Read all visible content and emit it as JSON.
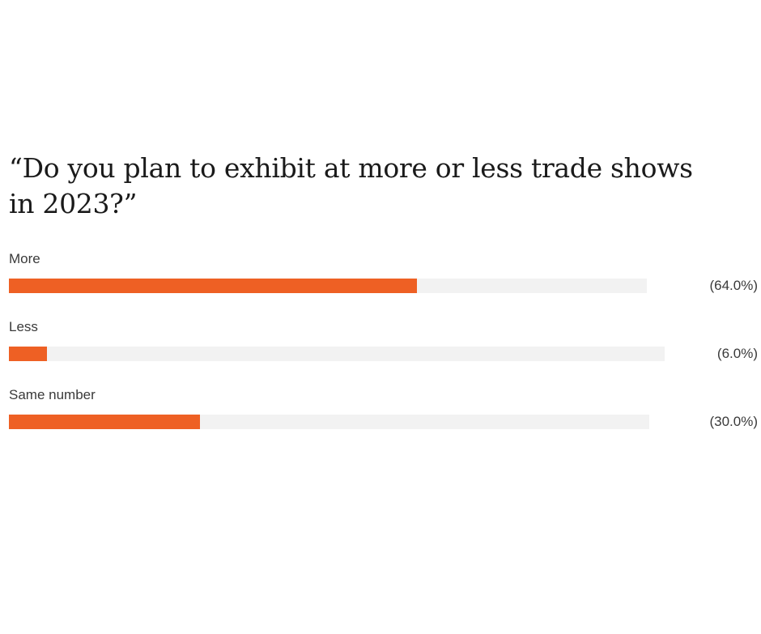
{
  "chart_data": {
    "type": "bar",
    "orientation": "horizontal",
    "title": "“Do you plan to exhibit at more or less trade shows in 2023?”",
    "categories": [
      "More",
      "Less",
      "Same number"
    ],
    "values": [
      64.0,
      6.0,
      30.0
    ],
    "value_labels": [
      "(64.0%)",
      "(6.0%)",
      "(30.0%)"
    ],
    "unit": "%",
    "xlim": [
      0,
      100
    ],
    "grid": false,
    "legend": "none",
    "colors": {
      "bar": "#ee6024",
      "track": "#f2f2f2"
    }
  }
}
